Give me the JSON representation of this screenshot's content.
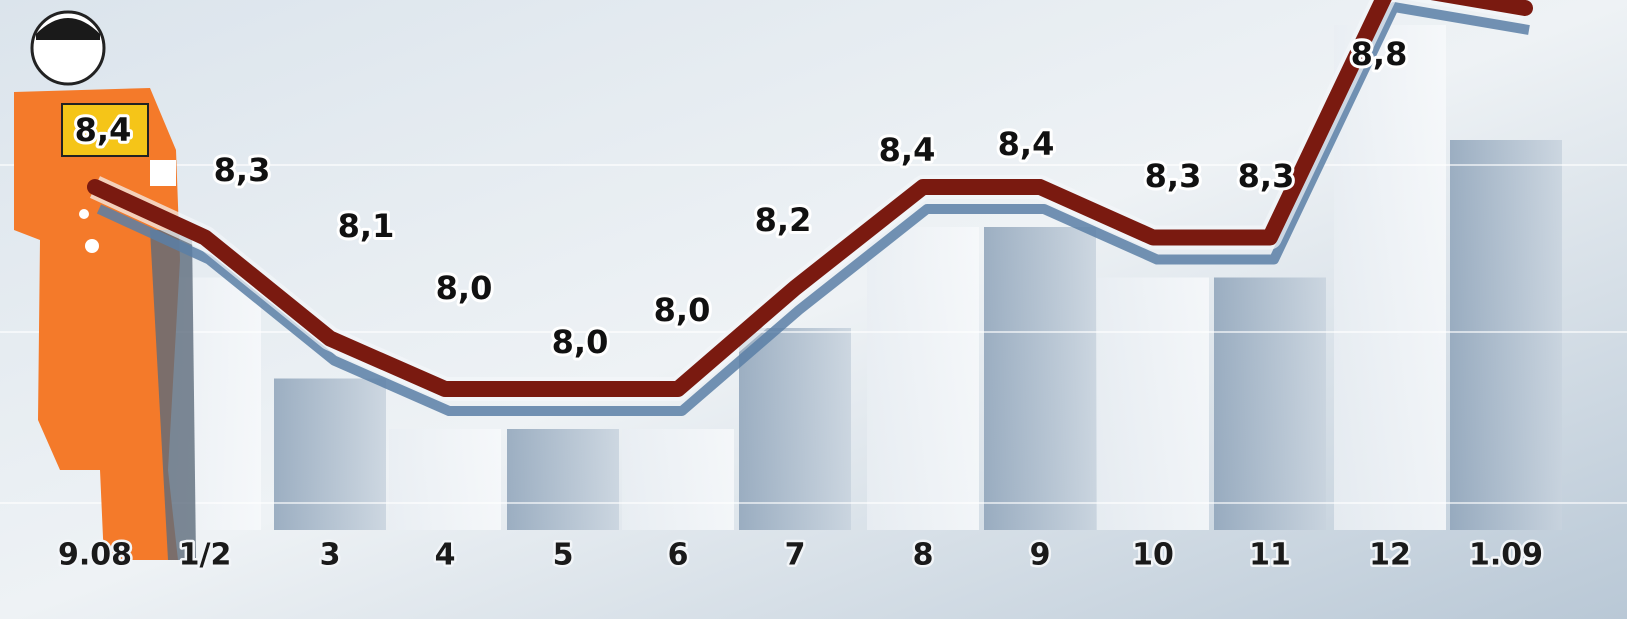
{
  "chart_data": {
    "type": "line",
    "x": [
      "9.08",
      "1/2",
      "3",
      "4",
      "5",
      "6",
      "7",
      "8",
      "9",
      "10",
      "11",
      "12",
      "1.09"
    ],
    "series": [
      {
        "values": [
          8.4,
          8.3,
          8.1,
          8.0,
          8.0,
          8.0,
          8.2,
          8.4,
          8.4,
          8.3,
          8.3,
          8.8,
          null
        ]
      }
    ],
    "data_labels": [
      "8,4",
      "8,3",
      "8,1",
      "8,0",
      "8,0",
      "8,0",
      "8,2",
      "8,4",
      "8,4",
      "8,3",
      "8,3",
      "8,8",
      ""
    ],
    "colors": {
      "line": "#7a1a10",
      "line_shadow": "#5b7fa6",
      "figure": "#f47a2a",
      "highlight_box": "#f5c518"
    },
    "grid": true,
    "legend": "none"
  }
}
